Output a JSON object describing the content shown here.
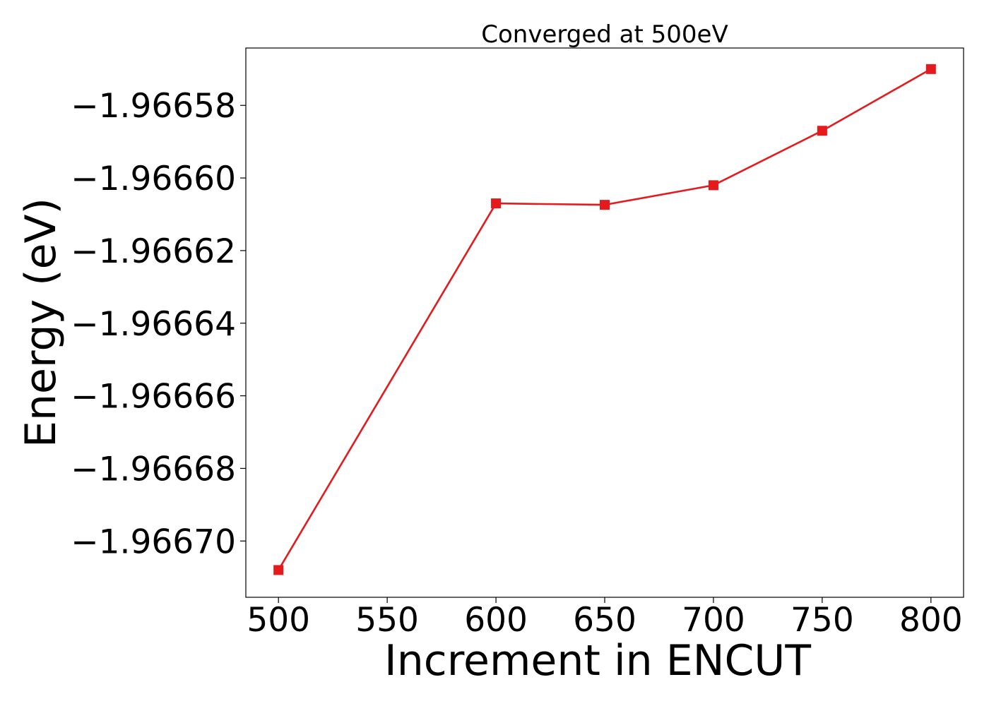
{
  "chart_data": {
    "type": "line",
    "title": "Converged at 500eV",
    "xlabel": "Increment in ENCUT",
    "ylabel": "Energy (eV)",
    "x": [
      500,
      600,
      650,
      700,
      750,
      800
    ],
    "series": [
      {
        "values": [
          -1.966708,
          -1.966607,
          -1.9666074,
          -1.966602,
          -1.966587,
          -1.96657
        ],
        "color": "#e41a1c",
        "marker": "square"
      }
    ],
    "x_ticks": [
      500,
      550,
      600,
      650,
      700,
      750,
      800
    ],
    "x_tick_labels": [
      "500",
      "550",
      "600",
      "650",
      "700",
      "750",
      "800"
    ],
    "y_ticks": [
      -1.96658,
      -1.9666,
      -1.96662,
      -1.96664,
      -1.96666,
      -1.96668,
      -1.9667
    ],
    "y_tick_labels": [
      "−1.96658",
      "−1.96660",
      "−1.96662",
      "−1.96664",
      "−1.96666",
      "−1.96668",
      "−1.96670"
    ],
    "xlim": [
      485,
      815
    ],
    "ylim": [
      -1.9667155,
      -1.9665642
    ],
    "grid": false,
    "legend": false
  }
}
